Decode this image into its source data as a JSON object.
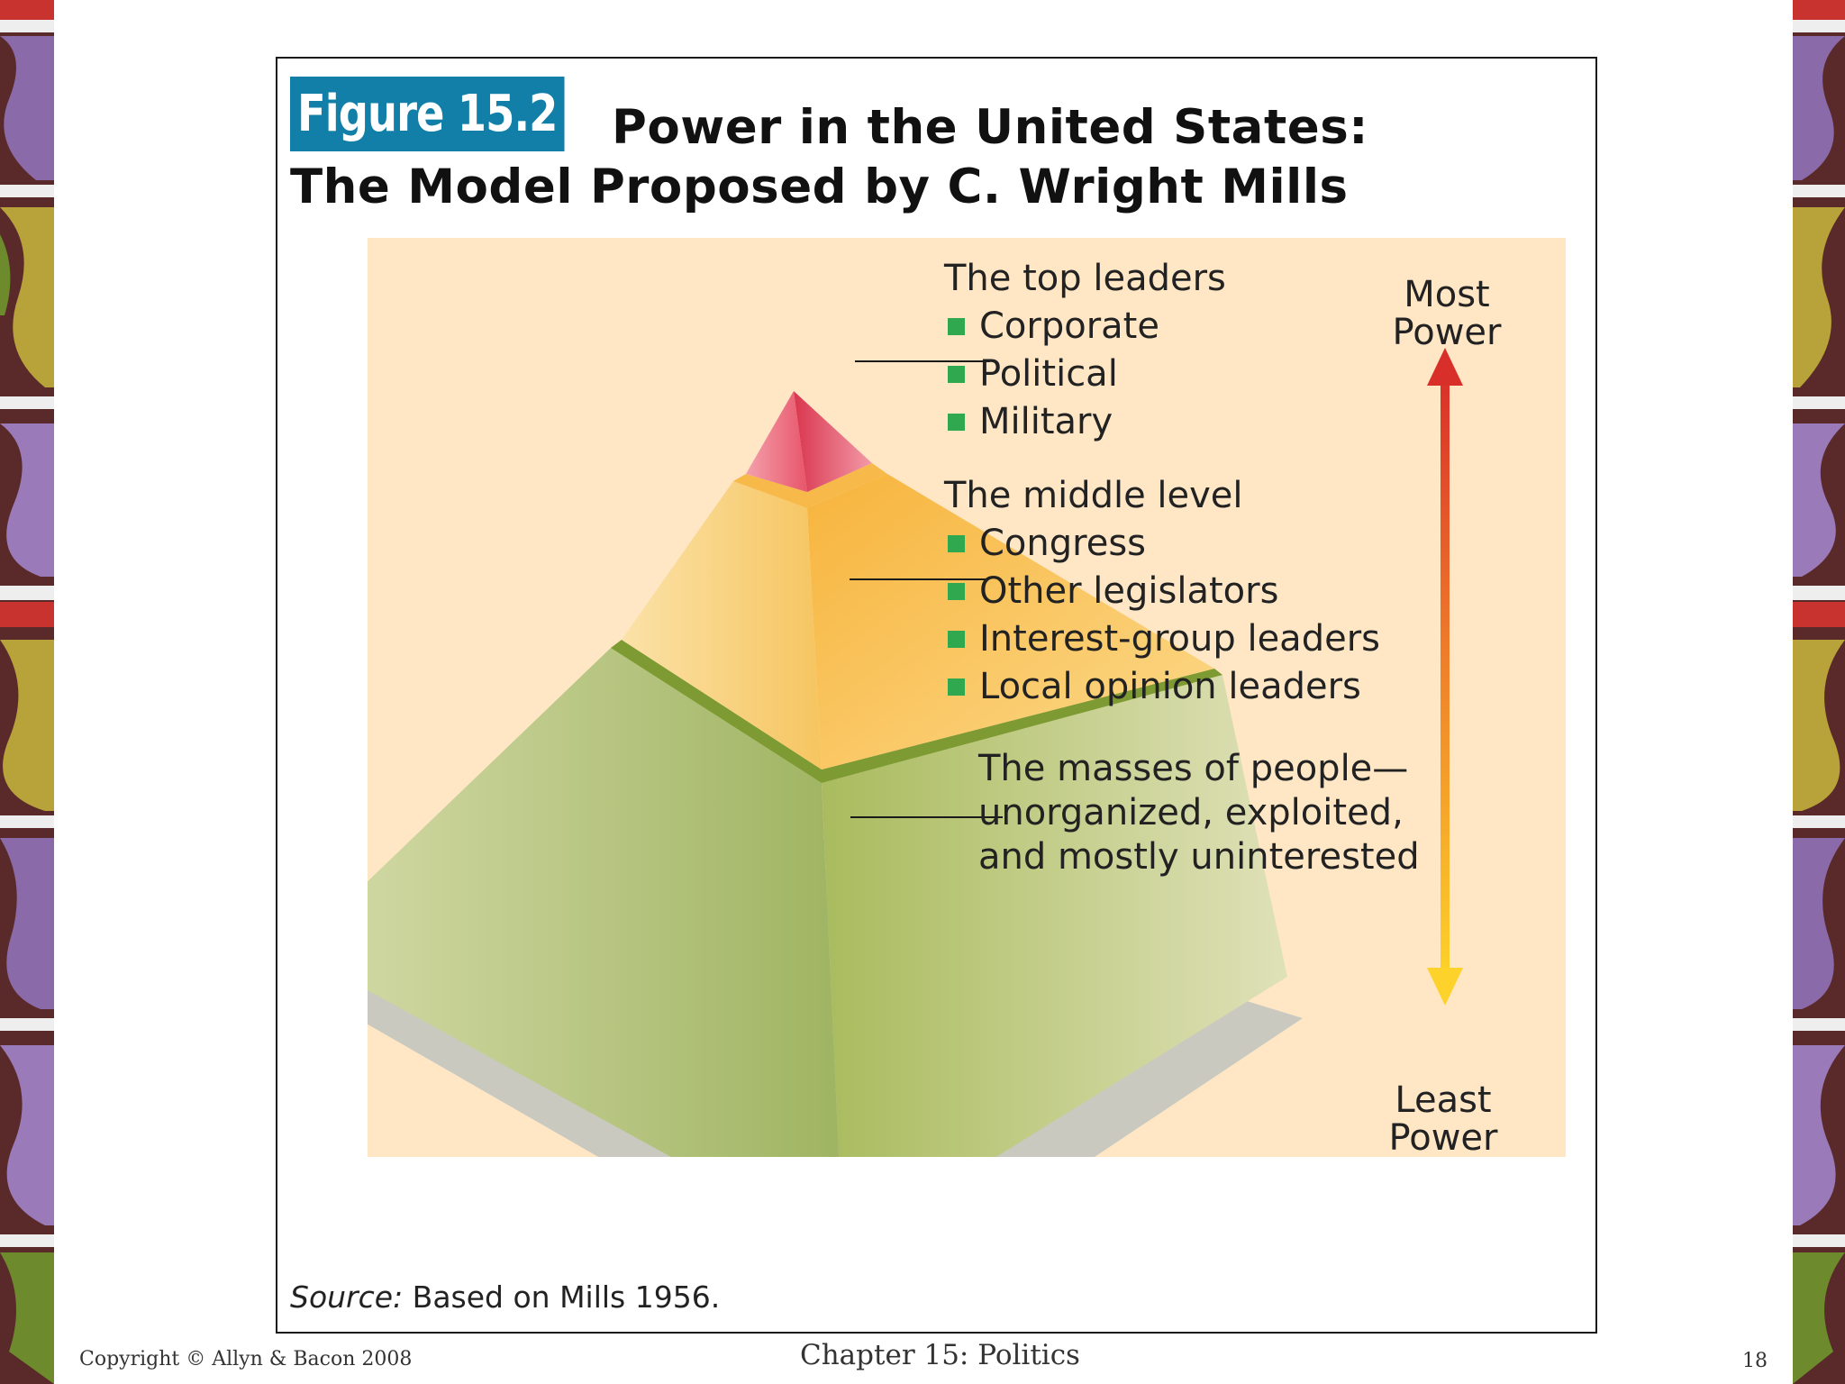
{
  "figure": {
    "badge": "Figure 15.2",
    "title_line1": "Power in the United States:",
    "title_line2": "The Model Proposed by C. Wright Mills",
    "levels": [
      {
        "heading": "The top leaders",
        "items": [
          "Corporate",
          "Political",
          "Military"
        ]
      },
      {
        "heading": "The middle level",
        "items": [
          "Congress",
          "Other legislators",
          "Interest-group leaders",
          "Local opinion leaders"
        ]
      },
      {
        "lines": [
          "The masses of people—",
          "unorganized, exploited,",
          "and mostly uninterested"
        ]
      }
    ],
    "scale": {
      "top_line1": "Most",
      "top_line2": "Power",
      "bottom_line1": "Least",
      "bottom_line2": "Power"
    },
    "source_label": "Source:",
    "source_text": " Based on Mills 1956."
  },
  "footer": {
    "copyright": "Copyright © Allyn & Bacon 2008",
    "chapter": "Chapter 15: Politics",
    "page": "18"
  },
  "colors": {
    "badge": "#127fa8",
    "panel": "#ffe7c6",
    "bullet": "#2fa84f",
    "pyramid_top": "#e8556a",
    "pyramid_middle": "#f7b43c",
    "pyramid_base": "#a9bd6a"
  }
}
